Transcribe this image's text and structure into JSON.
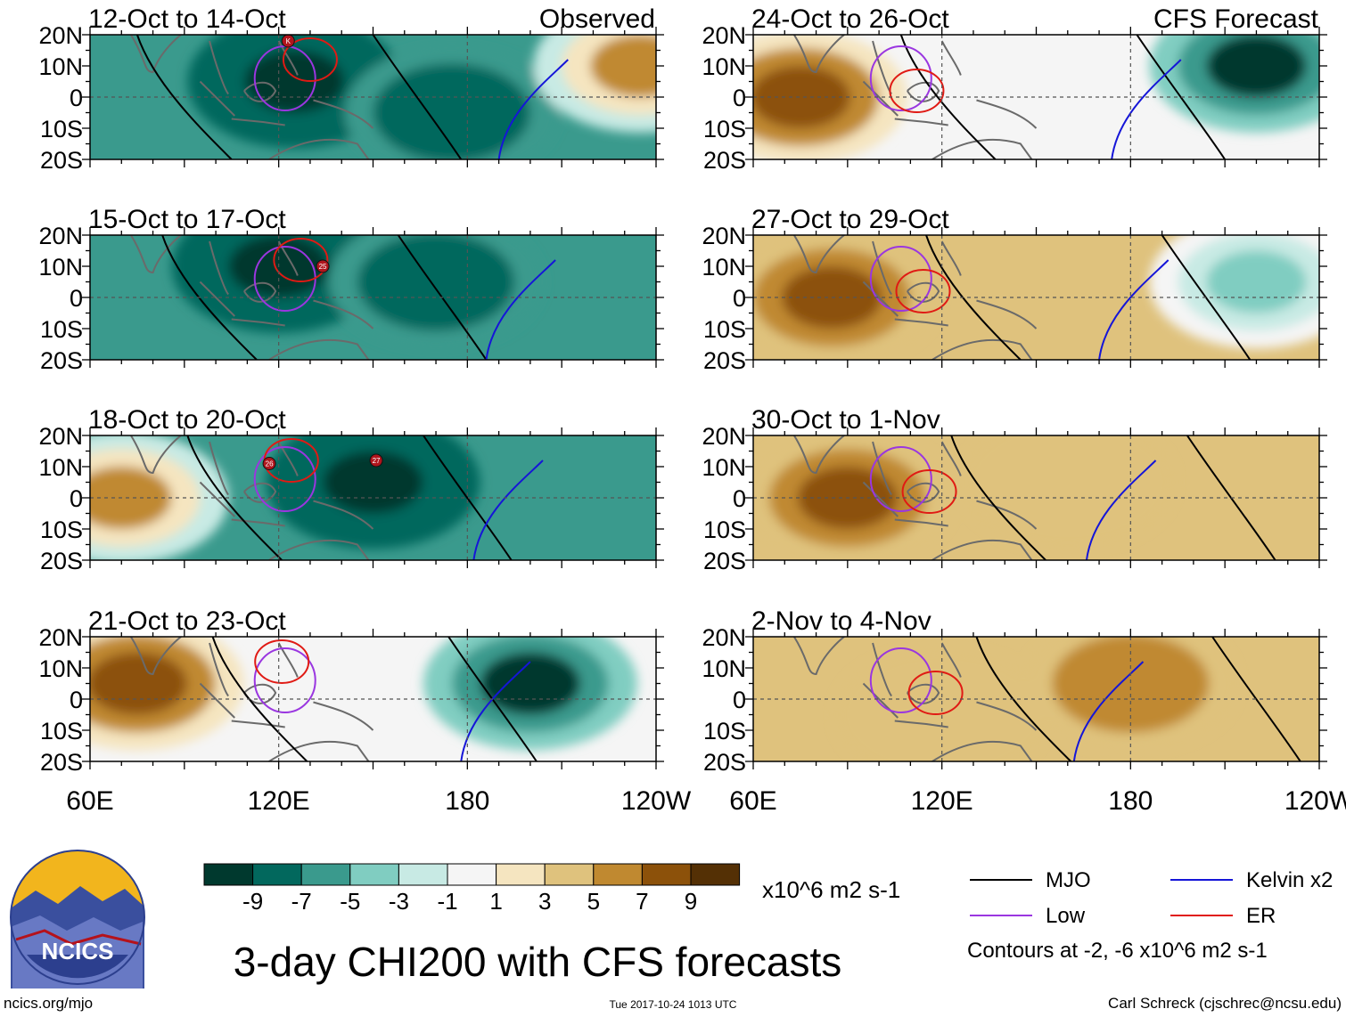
{
  "title": "3-day CHI200 with CFS forecasts",
  "units": "x10^6 m2 s-1",
  "contour_note": "Contours at -2, -6 x10^6 m2 s-1",
  "footer": {
    "left": "ncics.org/mjo",
    "center": "Tue 2017-10-24 1013 UTC",
    "right": "Carl Schreck (cjschrec@ncsu.edu)"
  },
  "logo": {
    "text": "NCICS"
  },
  "legend": [
    {
      "label": "MJO",
      "color": "#000000"
    },
    {
      "label": "Kelvin x2",
      "color": "#1515d8"
    },
    {
      "label": "Low",
      "color": "#9a36e0"
    },
    {
      "label": "ER",
      "color": "#e01a14"
    }
  ],
  "colorbar": {
    "labels": [
      "-9",
      "-7",
      "-5",
      "-3",
      "-1",
      "1",
      "3",
      "5",
      "7",
      "9"
    ],
    "colors": [
      "#00392e",
      "#02685d",
      "#3a9a8d",
      "#80cdc1",
      "#c8eae4",
      "#f5f5f5",
      "#f5e5c0",
      "#dfc27d",
      "#c08930",
      "#8c510a",
      "#543005"
    ]
  },
  "chart_data": {
    "type": "heatmap",
    "variable": "CHI200 anomaly (200 hPa velocity potential)",
    "lat_ticks": [
      "20N",
      "10N",
      "0",
      "10S",
      "20S"
    ],
    "lon_ticks": [
      "60E",
      "120E",
      "180",
      "120W"
    ],
    "lat_range": [
      -20,
      20
    ],
    "lon_range": [
      60,
      240
    ],
    "panels": [
      {
        "label": "12-Oct to 14-Oct",
        "tag": "Observed",
        "dominant": "negative",
        "centers": [
          {
            "lon": 125,
            "lat": 5,
            "value": -9
          },
          {
            "lon": 175,
            "lat": -5,
            "value": -7
          },
          {
            "lon": 235,
            "lat": 10,
            "value": 7
          }
        ],
        "storms": [
          {
            "lon": 123,
            "lat": 18,
            "label": "K"
          }
        ]
      },
      {
        "label": "15-Oct to 17-Oct",
        "tag": "",
        "dominant": "negative",
        "centers": [
          {
            "lon": 120,
            "lat": 10,
            "value": -9
          },
          {
            "lon": 170,
            "lat": 5,
            "value": -7
          }
        ],
        "storms": [
          {
            "lon": 134,
            "lat": 10,
            "label": "25"
          }
        ]
      },
      {
        "label": "18-Oct to 20-Oct",
        "tag": "",
        "dominant": "negative",
        "centers": [
          {
            "lon": 150,
            "lat": 5,
            "value": -9
          },
          {
            "lon": 70,
            "lat": 0,
            "value": 7
          }
        ],
        "storms": [
          {
            "lon": 117,
            "lat": 11,
            "label": "26"
          },
          {
            "lon": 151,
            "lat": 12,
            "label": "27"
          }
        ]
      },
      {
        "label": "21-Oct to 23-Oct",
        "tag": "",
        "dominant": "mixed",
        "centers": [
          {
            "lon": 200,
            "lat": 5,
            "value": -9
          },
          {
            "lon": 75,
            "lat": 5,
            "value": 9
          }
        ],
        "storms": []
      },
      {
        "label": "24-Oct to 26-Oct",
        "tag": "CFS Forecast",
        "dominant": "mixed",
        "centers": [
          {
            "lon": 75,
            "lat": 0,
            "value": 9
          },
          {
            "lon": 220,
            "lat": 10,
            "value": -9
          }
        ],
        "storms": []
      },
      {
        "label": "27-Oct to 29-Oct",
        "tag": "",
        "dominant": "positive",
        "centers": [
          {
            "lon": 85,
            "lat": 0,
            "value": 9
          },
          {
            "lon": 220,
            "lat": 5,
            "value": -3
          }
        ],
        "storms": []
      },
      {
        "label": "30-Oct to 1-Nov",
        "tag": "",
        "dominant": "positive",
        "centers": [
          {
            "lon": 90,
            "lat": 0,
            "value": 9
          },
          {
            "lon": 160,
            "lat": 5,
            "value": 5
          }
        ],
        "storms": []
      },
      {
        "label": "2-Nov to 4-Nov",
        "tag": "",
        "dominant": "positive",
        "centers": [
          {
            "lon": 180,
            "lat": 5,
            "value": 7
          },
          {
            "lon": 120,
            "lat": -5,
            "value": 5
          }
        ],
        "storms": []
      }
    ]
  }
}
